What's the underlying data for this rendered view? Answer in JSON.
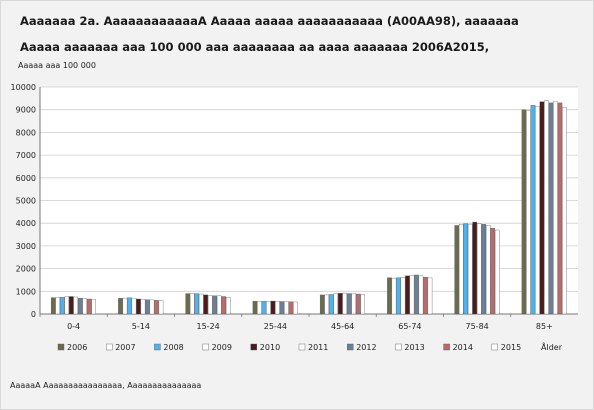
{
  "title_line1": "Aaaaaaa 2a. AaaaaaaaaaaaA Aaaaa aaaaa aaaaaaaaaaa (A00AA98), aaaaaaa",
  "title_line2": "Aaaaa aaaaaaa aaa 100 000 aaa aaaaaaaa aa aaaa aaaaaaa 2006A2015,",
  "y_unit_label": "Aaaaa aaa 100 000",
  "source_note": "AaaaaA Aaaaaaaaaaaaaaaa, Aaaaaaaaaaaaaaa",
  "chart_data": {
    "type": "bar",
    "title": "",
    "xlabel": "Ålder",
    "ylabel": "Aaaaa aaa 100 000",
    "ylim": [
      0,
      10000
    ],
    "yticks": [
      0,
      1000,
      2000,
      3000,
      4000,
      5000,
      6000,
      7000,
      8000,
      9000,
      10000
    ],
    "ytick_labels": [
      "0",
      "1000",
      "2000",
      "3000",
      "4000",
      "5000",
      "6000",
      "7000",
      "8000",
      "9000",
      "10000"
    ],
    "grid": true,
    "legend": "bottom",
    "categories": [
      "0-4",
      "5-14",
      "15-24",
      "25-44",
      "45-64",
      "65-74",
      "75-84",
      "85+"
    ],
    "series": [
      {
        "name": "2006",
        "color": "#6b6b4e",
        "values": [
          720,
          690,
          900,
          560,
          840,
          1600,
          3900,
          9000
        ]
      },
      {
        "name": "2007",
        "color": "#ffffff",
        "values": [
          720,
          700,
          910,
          550,
          840,
          1580,
          3950,
          8950
        ]
      },
      {
        "name": "2008",
        "color": "#4db3f0",
        "values": [
          740,
          720,
          900,
          560,
          860,
          1600,
          3980,
          9200
        ]
      },
      {
        "name": "2009",
        "color": "#ffffff",
        "values": [
          760,
          700,
          880,
          560,
          900,
          1620,
          3960,
          9150
        ]
      },
      {
        "name": "2010",
        "color": "#4a1c1c",
        "values": [
          770,
          660,
          840,
          570,
          910,
          1680,
          4050,
          9350
        ]
      },
      {
        "name": "2011",
        "color": "#ffffff",
        "values": [
          750,
          650,
          810,
          560,
          920,
          1700,
          3980,
          9400
        ]
      },
      {
        "name": "2012",
        "color": "#6b7f96",
        "values": [
          700,
          630,
          800,
          550,
          900,
          1720,
          3950,
          9300
        ]
      },
      {
        "name": "2013",
        "color": "#ffffff",
        "values": [
          680,
          620,
          800,
          550,
          900,
          1680,
          3900,
          9350
        ]
      },
      {
        "name": "2014",
        "color": "#b86b6b",
        "values": [
          660,
          600,
          770,
          540,
          880,
          1620,
          3780,
          9300
        ]
      },
      {
        "name": "2015",
        "color": "#ffffff",
        "values": [
          640,
          590,
          740,
          530,
          860,
          1590,
          3700,
          9100
        ]
      }
    ]
  }
}
